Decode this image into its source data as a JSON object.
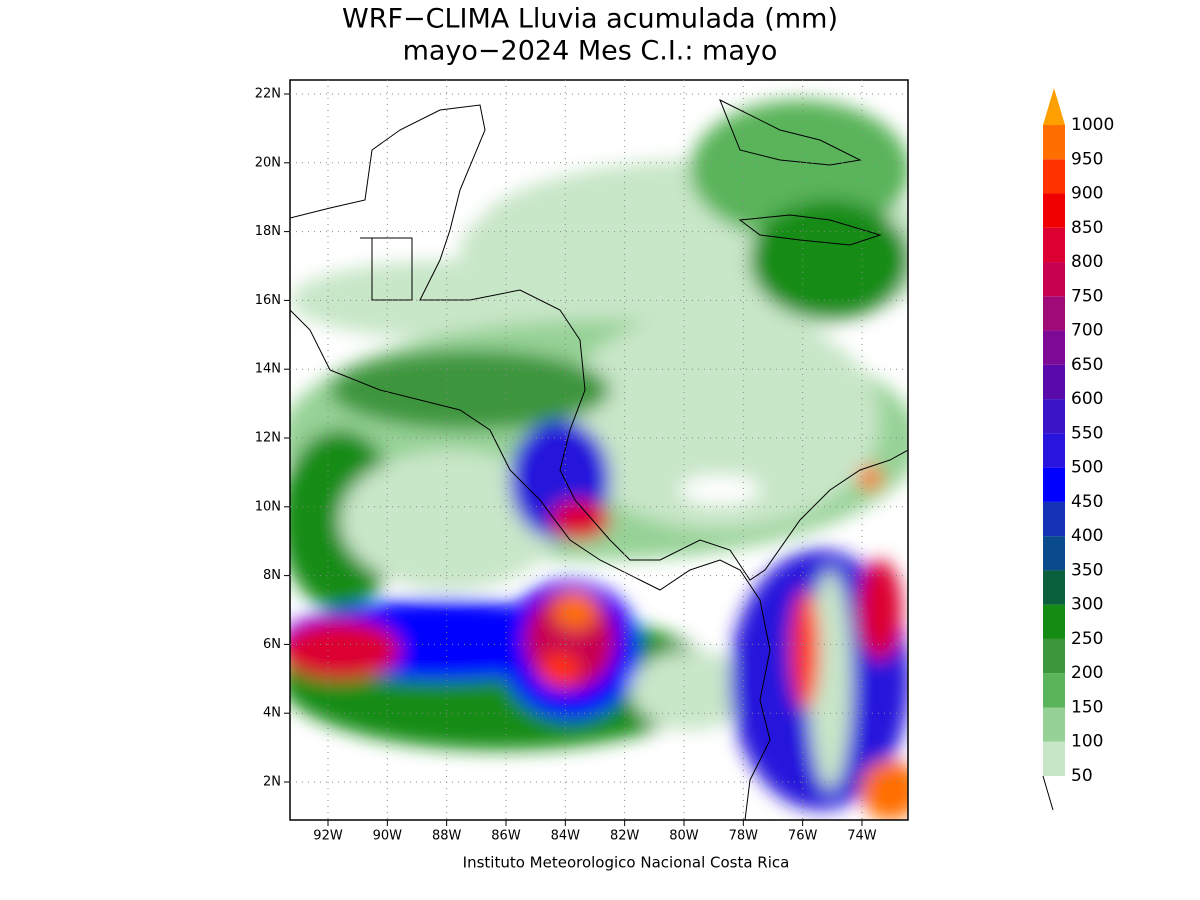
{
  "title": [
    "WRF−CLIMA Lluvia acumulada (mm)",
    "mayo−2024 Mes C.I.: mayo"
  ],
  "map": {
    "lat_labels": [
      "2N",
      "4N",
      "6N",
      "8N",
      "10N",
      "12N",
      "14N",
      "16N",
      "18N",
      "20N",
      "22N"
    ],
    "lon_labels": [
      "92W",
      "90W",
      "88W",
      "86W",
      "84W",
      "82W",
      "80W",
      "78W",
      "76W",
      "74W"
    ]
  },
  "colorbar": {
    "levels": [
      50,
      100,
      150,
      200,
      250,
      300,
      350,
      400,
      450,
      500,
      550,
      600,
      650,
      700,
      750,
      800,
      850,
      900,
      950,
      1000
    ],
    "colors": [
      "#c8e6c8",
      "#96d296",
      "#5ab45a",
      "#3c963c",
      "#148c14",
      "#0a5f3c",
      "#0a4b8c",
      "#1432b4",
      "#0000ff",
      "#2814dc",
      "#3c14c8",
      "#5a0aaa",
      "#7d0a96",
      "#a00a78",
      "#c80050",
      "#dc0032",
      "#f00000",
      "#ff3200",
      "#ff6e00"
    ],
    "over_color": "#ffa000"
  },
  "footer": "Instituto Meteorologico Nacional Costa Rica"
}
